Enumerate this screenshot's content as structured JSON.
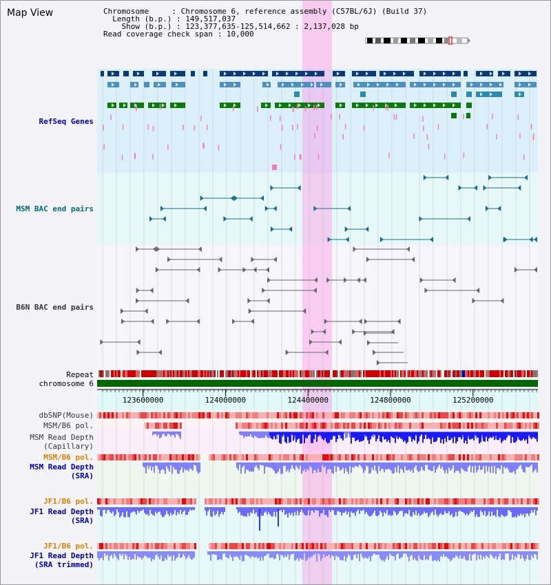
{
  "window": {
    "title": "Map View"
  },
  "info": {
    "chromosome_key": "Chromosome",
    "chromosome_value": "Chromosome 6, reference assembly (C57BL/6J) (Build 37)",
    "length_key": "Length (b.p.)",
    "length_value": "149,517,037",
    "show_key": "Show (b.p.)",
    "show_value": "123,377,635-125,514,662 : 2,137,028 bp",
    "coverage_key": "Read coverage check span",
    "coverage_value": "10,000"
  },
  "tracks": {
    "refseq": "RefSeq Genes",
    "msm_bac": "MSM BAC end pairs",
    "b6n_bac": "B6N BAC end pairs",
    "repeat": "Repeat",
    "chromosome": "chromosome 6",
    "dbsnp": "dbSNP(Mouse)",
    "msm_b6_pol_1": "MSM/B6 pol.",
    "msm_capillary": "MSM Read Depth\n(Capillary)",
    "msm_b6_pol_2": "MSM/B6 pol.",
    "msm_sra": "MSM Read Depth\n(SRA)",
    "jf1_b6_pol_1": "JF1/B6 pol.",
    "jf1_sra": "JF1 Read Depth\n(SRA)",
    "jf1_b6_pol_2": "JF1/B6 pol.",
    "jf1_sra_trimmed": "JF1 Read Depth\n(SRA trimmed)"
  },
  "ruler": {
    "range": [
      123377635,
      125514662
    ],
    "ticks": [
      123600000,
      124000000,
      124400000,
      124800000,
      125200000
    ],
    "tick_labels": [
      "123600000",
      "124000000",
      "124400000",
      "124800000",
      "125200000"
    ]
  },
  "highlight": {
    "start": 124373000,
    "end": 124512000
  },
  "colors": {
    "refseq_dark": "#0b3a78",
    "refseq_mid": "#4a90c0",
    "refseq_green": "#0a7a0a",
    "refseq_pink": "#f080b0",
    "msm_bac": "#1a6c8c",
    "b6n_bac": "#666666",
    "chromosome": "#006600",
    "highlight": "#ff80e0",
    "depth_dark": "#1a1aff",
    "depth_light": "#8080ff"
  }
}
